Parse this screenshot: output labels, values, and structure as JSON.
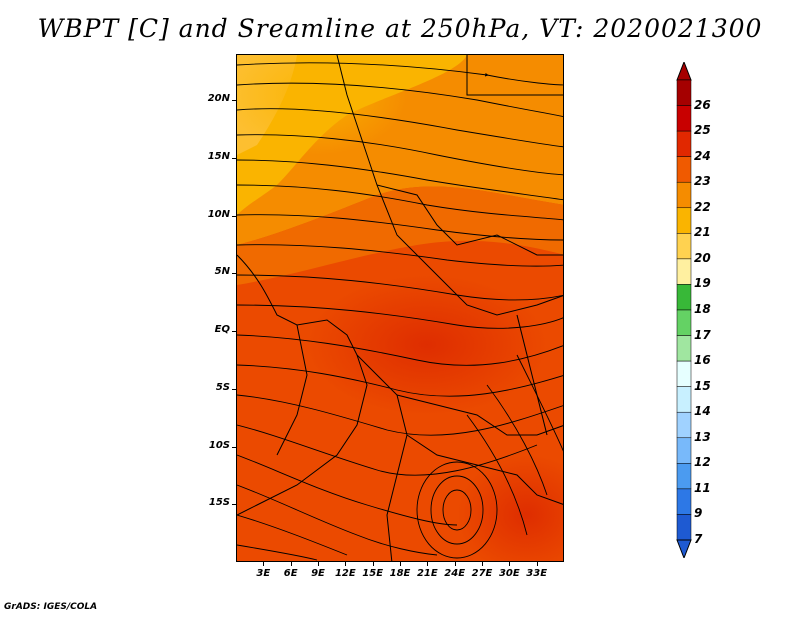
{
  "title": "WBPT [C] and Sreamline at 250hPa, VT: 2020021300",
  "credit": "GrADS: IGES/COLA",
  "map": {
    "lon_range": [
      0,
      36
    ],
    "lat_range": [
      -20,
      24
    ],
    "lat_ticks": [
      {
        "value": 20,
        "label": "20N"
      },
      {
        "value": 15,
        "label": "15N"
      },
      {
        "value": 10,
        "label": "10N"
      },
      {
        "value": 5,
        "label": "5N"
      },
      {
        "value": 0,
        "label": "EQ"
      },
      {
        "value": -5,
        "label": "5S"
      },
      {
        "value": -10,
        "label": "10S"
      },
      {
        "value": -15,
        "label": "15S"
      }
    ],
    "lon_ticks": [
      {
        "value": 3,
        "label": "3E"
      },
      {
        "value": 6,
        "label": "6E"
      },
      {
        "value": 9,
        "label": "9E"
      },
      {
        "value": 12,
        "label": "12E"
      },
      {
        "value": 15,
        "label": "15E"
      },
      {
        "value": 18,
        "label": "18E"
      },
      {
        "value": 21,
        "label": "21E"
      },
      {
        "value": 24,
        "label": "24E"
      },
      {
        "value": 27,
        "label": "27E"
      },
      {
        "value": 30,
        "label": "30E"
      },
      {
        "value": 33,
        "label": "33E"
      }
    ]
  },
  "colorbar": {
    "labels": [
      "26",
      "25",
      "24",
      "23",
      "22",
      "21",
      "20",
      "19",
      "18",
      "17",
      "16",
      "15",
      "14",
      "13",
      "12",
      "11",
      "9",
      "7"
    ],
    "colors": [
      "#a50000",
      "#c80000",
      "#e12800",
      "#f05a00",
      "#f58c00",
      "#fab400",
      "#ffd250",
      "#fff0a0",
      "#38b838",
      "#64d264",
      "#a0e6a0",
      "#e6ffff",
      "#c8f0ff",
      "#a0d2ff",
      "#78b9fa",
      "#4b9bf0",
      "#2d78e6",
      "#1e5ad2"
    ],
    "over_color": "#a50000",
    "under_color": "#1e5ad2"
  }
}
